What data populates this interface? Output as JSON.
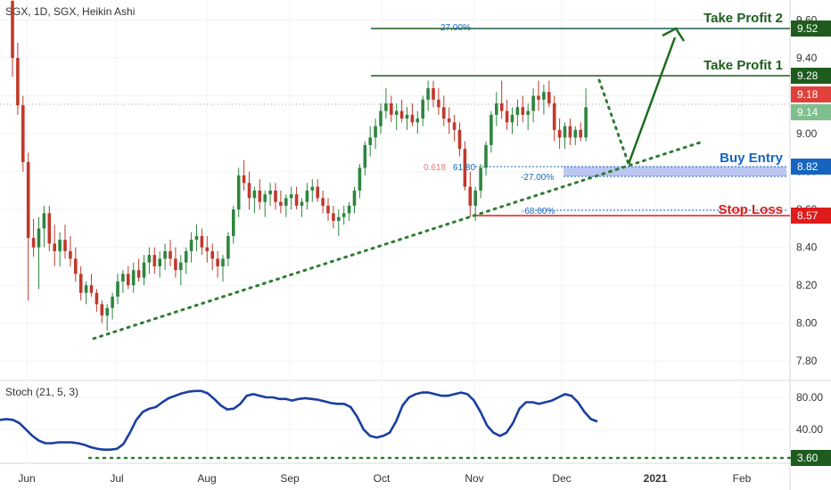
{
  "header": {
    "symbol_title": "SGX, 1D, SGX, Heikin Ashi"
  },
  "oscillator": {
    "title": "Stoch (21, 5, 3)"
  },
  "annotations": {
    "take_profit_2": "Take Profit 2",
    "take_profit_1": "Take Profit 1",
    "buy_entry": "Buy Entry",
    "stop_loss": "Stop Loss",
    "fib_pct_tp2": "27.00%",
    "fib_pct_entry": "-27.00%",
    "fib_pct_sl": "-68.00%",
    "fib_ratio_a": "0.618",
    "fib_ratio_b": "61.80"
  },
  "price_tags": {
    "tp2": "9.52",
    "tp1": "9.28",
    "last_close": "9.18",
    "last_open": "9.14",
    "entry": "8.82",
    "stop": "8.57",
    "stoch_level": "3.60"
  },
  "colors": {
    "up": "#26a69a",
    "up_candle": "#2e8540",
    "down": "#c0392b",
    "take_profit": "#1e5c1e",
    "buy_entry": "#1565c0",
    "stop_loss": "#e01b1b",
    "stoch_line": "#1a3fa0",
    "trend_dots": "#2e7d32",
    "axis_text": "#333333",
    "grid": "#f0f3fa"
  },
  "chart_data": [
    {
      "type": "candlestick",
      "style": "Heikin Ashi",
      "title": "SGX, 1D, SGX, Heikin Ashi",
      "x_ticks": [
        "Jun",
        "Jul",
        "Aug",
        "Sep",
        "Oct",
        "Nov",
        "Dec",
        "2021",
        "Feb"
      ],
      "y_ticks": [
        7.8,
        8.0,
        8.2,
        8.4,
        8.6,
        8.8,
        9.0,
        9.2,
        9.4,
        9.6
      ],
      "ylim": [
        7.74,
        9.64
      ],
      "series": [
        {
          "ohlc": [
            [
              9.7,
              9.75,
              9.3,
              9.4
            ],
            [
              9.4,
              9.48,
              9.1,
              9.15
            ],
            [
              9.15,
              9.2,
              8.8,
              8.85
            ],
            [
              8.85,
              8.9,
              8.12,
              8.45
            ],
            [
              8.45,
              8.55,
              8.35,
              8.4
            ],
            [
              8.4,
              8.56,
              8.18,
              8.5
            ],
            [
              8.5,
              8.62,
              8.4,
              8.58
            ],
            [
              8.58,
              8.62,
              8.38,
              8.42
            ],
            [
              8.42,
              8.52,
              8.3,
              8.38
            ],
            [
              8.38,
              8.48,
              8.3,
              8.44
            ],
            [
              8.44,
              8.52,
              8.34,
              8.38
            ],
            [
              8.38,
              8.46,
              8.3,
              8.34
            ],
            [
              8.34,
              8.4,
              8.22,
              8.26
            ],
            [
              8.26,
              8.3,
              8.12,
              8.16
            ],
            [
              8.16,
              8.22,
              8.1,
              8.2
            ],
            [
              8.2,
              8.26,
              8.14,
              8.16
            ],
            [
              8.16,
              8.18,
              8.06,
              8.1
            ],
            [
              8.1,
              8.12,
              8.0,
              8.04
            ],
            [
              8.04,
              8.1,
              7.96,
              8.08
            ],
            [
              8.08,
              8.16,
              8.02,
              8.14
            ],
            [
              8.14,
              8.26,
              8.1,
              8.22
            ],
            [
              8.22,
              8.28,
              8.16,
              8.26
            ],
            [
              8.26,
              8.3,
              8.18,
              8.2
            ],
            [
              8.2,
              8.32,
              8.16,
              8.28
            ],
            [
              8.28,
              8.34,
              8.22,
              8.24
            ],
            [
              8.24,
              8.36,
              8.2,
              8.32
            ],
            [
              8.32,
              8.4,
              8.26,
              8.36
            ],
            [
              8.36,
              8.4,
              8.26,
              8.3
            ],
            [
              8.3,
              8.38,
              8.24,
              8.34
            ],
            [
              8.34,
              8.42,
              8.28,
              8.38
            ],
            [
              8.38,
              8.44,
              8.3,
              8.34
            ],
            [
              8.34,
              8.4,
              8.24,
              8.28
            ],
            [
              8.28,
              8.36,
              8.2,
              8.32
            ],
            [
              8.32,
              8.4,
              8.26,
              8.38
            ],
            [
              8.38,
              8.48,
              8.32,
              8.44
            ],
            [
              8.44,
              8.52,
              8.38,
              8.46
            ],
            [
              8.46,
              8.5,
              8.36,
              8.4
            ],
            [
              8.4,
              8.46,
              8.32,
              8.38
            ],
            [
              8.38,
              8.42,
              8.28,
              8.34
            ],
            [
              8.34,
              8.38,
              8.24,
              8.3
            ],
            [
              8.3,
              8.36,
              8.22,
              8.34
            ],
            [
              8.34,
              8.48,
              8.3,
              8.46
            ],
            [
              8.46,
              8.62,
              8.42,
              8.6
            ],
            [
              8.6,
              8.82,
              8.56,
              8.78
            ],
            [
              8.78,
              8.86,
              8.7,
              8.74
            ],
            [
              8.74,
              8.8,
              8.6,
              8.66
            ],
            [
              8.66,
              8.72,
              8.58,
              8.7
            ],
            [
              8.7,
              8.76,
              8.6,
              8.64
            ],
            [
              8.64,
              8.7,
              8.56,
              8.68
            ],
            [
              8.68,
              8.74,
              8.62,
              8.7
            ],
            [
              8.7,
              8.74,
              8.6,
              8.64
            ],
            [
              8.64,
              8.7,
              8.58,
              8.62
            ],
            [
              8.62,
              8.68,
              8.56,
              8.66
            ],
            [
              8.66,
              8.72,
              8.6,
              8.68
            ],
            [
              8.68,
              8.72,
              8.6,
              8.62
            ],
            [
              8.62,
              8.66,
              8.56,
              8.64
            ],
            [
              8.64,
              8.74,
              8.6,
              8.7
            ],
            [
              8.7,
              8.76,
              8.64,
              8.72
            ],
            [
              8.72,
              8.76,
              8.64,
              8.66
            ],
            [
              8.66,
              8.7,
              8.58,
              8.62
            ],
            [
              8.62,
              8.66,
              8.54,
              8.58
            ],
            [
              8.58,
              8.62,
              8.5,
              8.54
            ],
            [
              8.54,
              8.6,
              8.46,
              8.56
            ],
            [
              8.56,
              8.62,
              8.52,
              8.58
            ],
            [
              8.58,
              8.64,
              8.54,
              8.62
            ],
            [
              8.62,
              8.72,
              8.58,
              8.7
            ],
            [
              8.7,
              8.84,
              8.66,
              8.82
            ],
            [
              8.82,
              8.96,
              8.78,
              8.94
            ],
            [
              8.94,
              9.04,
              8.88,
              8.98
            ],
            [
              8.98,
              9.08,
              8.92,
              9.04
            ],
            [
              9.04,
              9.16,
              9.0,
              9.12
            ],
            [
              9.12,
              9.24,
              9.08,
              9.16
            ],
            [
              9.16,
              9.2,
              9.06,
              9.1
            ],
            [
              9.1,
              9.16,
              9.02,
              9.12
            ],
            [
              9.12,
              9.18,
              9.06,
              9.08
            ],
            [
              9.08,
              9.14,
              9.02,
              9.1
            ],
            [
              9.1,
              9.16,
              9.04,
              9.06
            ],
            [
              9.06,
              9.12,
              9.0,
              9.08
            ],
            [
              9.08,
              9.2,
              9.04,
              9.18
            ],
            [
              9.18,
              9.28,
              9.12,
              9.24
            ],
            [
              9.24,
              9.28,
              9.14,
              9.18
            ],
            [
              9.18,
              9.24,
              9.1,
              9.14
            ],
            [
              9.14,
              9.2,
              9.04,
              9.08
            ],
            [
              9.08,
              9.14,
              9.0,
              9.06
            ],
            [
              9.06,
              9.1,
              8.96,
              9.02
            ],
            [
              9.02,
              9.06,
              8.88,
              8.92
            ],
            [
              8.92,
              8.96,
              8.7,
              8.72
            ],
            [
              8.72,
              8.8,
              8.56,
              8.62
            ],
            [
              8.62,
              8.72,
              8.54,
              8.7
            ],
            [
              8.7,
              8.84,
              8.66,
              8.82
            ],
            [
              8.82,
              8.96,
              8.78,
              8.94
            ],
            [
              8.94,
              9.12,
              8.9,
              9.1
            ],
            [
              9.1,
              9.22,
              9.04,
              9.16
            ],
            [
              9.16,
              9.28,
              9.08,
              9.12
            ],
            [
              9.12,
              9.18,
              9.02,
              9.06
            ],
            [
              9.06,
              9.14,
              9.0,
              9.1
            ],
            [
              9.1,
              9.18,
              9.04,
              9.14
            ],
            [
              9.14,
              9.2,
              9.06,
              9.1
            ],
            [
              9.1,
              9.16,
              9.02,
              9.12
            ],
            [
              9.12,
              9.24,
              9.06,
              9.2
            ],
            [
              9.2,
              9.28,
              9.12,
              9.18
            ],
            [
              9.18,
              9.26,
              9.1,
              9.22
            ],
            [
              9.22,
              9.28,
              9.14,
              9.16
            ],
            [
              9.16,
              9.2,
              8.96,
              9.02
            ],
            [
              9.02,
              9.08,
              8.92,
              8.98
            ],
            [
              8.98,
              9.06,
              8.92,
              9.04
            ],
            [
              9.04,
              9.08,
              8.94,
              8.98
            ],
            [
              8.98,
              9.04,
              8.94,
              9.02
            ],
            [
              9.02,
              9.06,
              8.96,
              8.98
            ],
            [
              8.98,
              9.24,
              8.96,
              9.14
            ]
          ]
        }
      ]
    },
    {
      "type": "line",
      "title": "Stoch (21, 5, 3)",
      "y_ticks": [
        40.0,
        80.0
      ],
      "ylim": [
        -2,
        100
      ],
      "series": [
        {
          "values": [
            52,
            53,
            52,
            48,
            40,
            32,
            26,
            23,
            23,
            24,
            24,
            24,
            23,
            21,
            18,
            16,
            15,
            15,
            16,
            22,
            36,
            52,
            62,
            66,
            68,
            74,
            79,
            82,
            85,
            87,
            88,
            88,
            85,
            78,
            70,
            65,
            66,
            72,
            82,
            84,
            82,
            80,
            80,
            78,
            78,
            76,
            78,
            79,
            78,
            77,
            75,
            73,
            72,
            72,
            68,
            56,
            40,
            32,
            30,
            32,
            36,
            50,
            70,
            80,
            84,
            86,
            86,
            84,
            82,
            82,
            84,
            86,
            84,
            76,
            62,
            45,
            36,
            32,
            36,
            48,
            66,
            74,
            74,
            72,
            74,
            76,
            80,
            84,
            82,
            74,
            62,
            53,
            50
          ]
        }
      ],
      "reference_level": 3.6
    }
  ]
}
